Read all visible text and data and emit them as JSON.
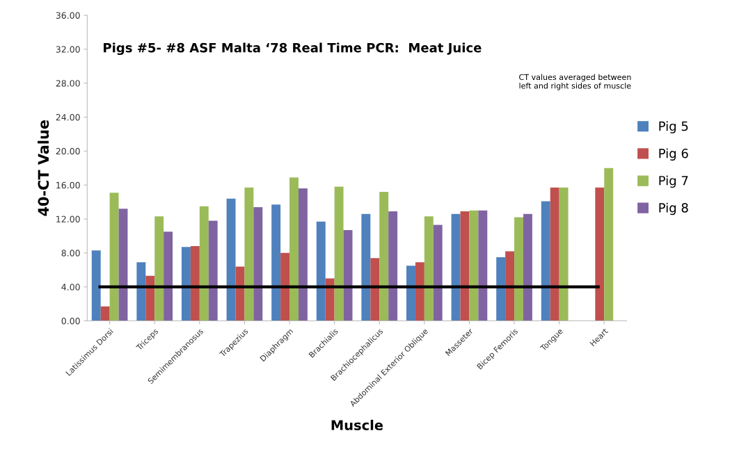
{
  "chart_data": {
    "type": "bar",
    "title": "Pigs #5- #8 ASF Malta ‘78 Real Time PCR:  Meat Juice",
    "xlabel": "Muscle",
    "ylabel": "40-CT Value",
    "annotations": [
      "CT values averaged between\nleft and right sides of muscle"
    ],
    "categories": [
      "Latissimus Dorsi",
      "Triceps",
      "Semimembranosus",
      "Trapezius",
      "Diaphragm",
      "Brachialis",
      "Brachiocephalicus",
      "Abdominal Exterior Oblique",
      "Masseter",
      "Bicep Femoris",
      "Tongue",
      "Heart"
    ],
    "series": [
      {
        "name": "Pig 5",
        "color": "#4f81bd",
        "values": [
          8.3,
          6.9,
          8.7,
          14.4,
          13.7,
          11.7,
          12.6,
          6.5,
          12.6,
          7.5,
          14.1,
          null
        ]
      },
      {
        "name": "Pig 6",
        "color": "#c0504d",
        "values": [
          1.7,
          5.3,
          8.8,
          6.4,
          8.0,
          5.0,
          7.4,
          6.9,
          12.9,
          8.2,
          15.7,
          15.7
        ]
      },
      {
        "name": "Pig 7",
        "color": "#9bbb59",
        "values": [
          15.1,
          12.3,
          13.5,
          15.7,
          16.9,
          15.8,
          15.2,
          12.3,
          13.0,
          12.2,
          15.7,
          18.0
        ]
      },
      {
        "name": "Pig 8",
        "color": "#8064a2",
        "values": [
          13.2,
          10.5,
          11.8,
          13.4,
          15.6,
          10.7,
          12.9,
          11.3,
          13.0,
          12.6,
          null,
          null
        ]
      }
    ],
    "ylim": [
      0,
      36
    ],
    "yticks": [
      {
        "value": 0,
        "label": "0.00"
      },
      {
        "value": 4,
        "label": "4.00"
      },
      {
        "value": 8,
        "label": "8.00"
      },
      {
        "value": 12,
        "label": "12.00"
      },
      {
        "value": 16,
        "label": "16.00"
      },
      {
        "value": 20,
        "label": "20.00"
      },
      {
        "value": 24,
        "label": "24.00"
      },
      {
        "value": 28,
        "label": "28.00"
      },
      {
        "value": 32,
        "label": "32.00"
      },
      {
        "value": 36,
        "label": "36.00"
      }
    ],
    "ref_lines": [
      {
        "axis": "y",
        "value": 4,
        "color": "#000000"
      }
    ],
    "legend": "right",
    "grid": false
  }
}
